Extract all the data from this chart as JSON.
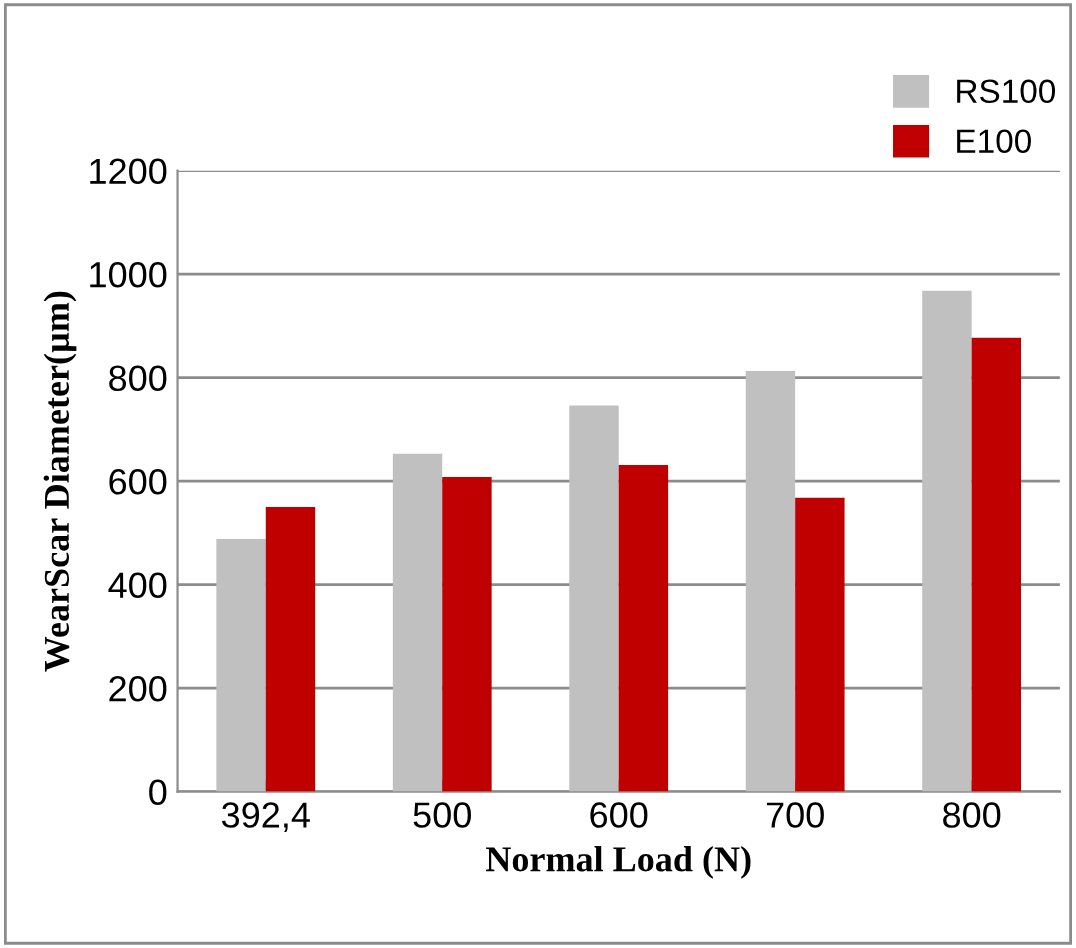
{
  "chart_data": {
    "type": "bar",
    "xlabel": "Normal Load (N)",
    "ylabel": "WearScar Diameter(µm)",
    "categories": [
      "392,4",
      "500",
      "600",
      "700",
      "800"
    ],
    "series": [
      {
        "name": "RS100",
        "color": "#c0c0c0",
        "values": [
          488,
          653,
          746,
          813,
          968
        ]
      },
      {
        "name": "E100",
        "color": "#c00000",
        "values": [
          550,
          608,
          631,
          568,
          877
        ]
      }
    ],
    "ylim": [
      0,
      1200
    ],
    "yticks": [
      0,
      200,
      400,
      600,
      800,
      1000,
      1200
    ],
    "grid": "y",
    "legend": "top right"
  }
}
